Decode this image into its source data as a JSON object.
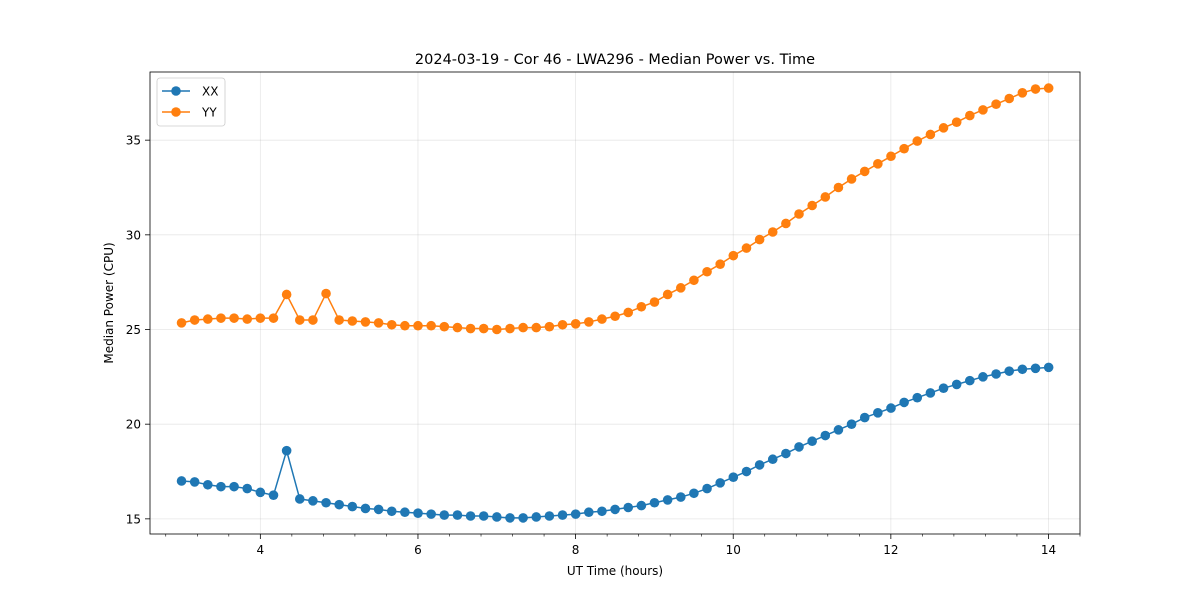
{
  "chart_data": {
    "type": "line",
    "title": "2024-03-19 - Cor 46 - LWA296 - Median Power vs. Time",
    "xlabel": "UT Time (hours)",
    "ylabel": "Median Power (CPU)",
    "xlim": [
      2.6,
      14.4
    ],
    "ylim": [
      14.2,
      38.6
    ],
    "xticks": [
      4,
      6,
      8,
      10,
      12,
      14
    ],
    "xtick_labels": [
      "4",
      "6",
      "8",
      "10",
      "12",
      "14"
    ],
    "x_minor_step": 0.4,
    "yticks": [
      15,
      20,
      25,
      30,
      35
    ],
    "ytick_labels": [
      "15",
      "20",
      "25",
      "30",
      "35"
    ],
    "grid": true,
    "legend_position": "top-left",
    "x_start": 3.0,
    "x_step": 0.1667,
    "series": [
      {
        "name": "XX",
        "color": "#1f77b4",
        "values": [
          17.0,
          16.95,
          16.8,
          16.7,
          16.7,
          16.6,
          16.4,
          16.25,
          18.6,
          16.05,
          15.95,
          15.85,
          15.75,
          15.65,
          15.55,
          15.5,
          15.4,
          15.35,
          15.3,
          15.25,
          15.2,
          15.2,
          15.15,
          15.15,
          15.1,
          15.05,
          15.05,
          15.1,
          15.15,
          15.2,
          15.25,
          15.35,
          15.4,
          15.5,
          15.6,
          15.7,
          15.85,
          16.0,
          16.15,
          16.35,
          16.6,
          16.9,
          17.2,
          17.5,
          17.85,
          18.15,
          18.45,
          18.8,
          19.1,
          19.4,
          19.7,
          20.0,
          20.35,
          20.6,
          20.85,
          21.15,
          21.4,
          21.65,
          21.9,
          22.1,
          22.3,
          22.5,
          22.65,
          22.8,
          22.9,
          22.95,
          23.0
        ]
      },
      {
        "name": "YY",
        "color": "#ff7f0e",
        "values": [
          25.35,
          25.5,
          25.55,
          25.6,
          25.6,
          25.55,
          25.6,
          25.6,
          26.85,
          25.5,
          25.5,
          26.9,
          25.5,
          25.45,
          25.4,
          25.35,
          25.25,
          25.2,
          25.2,
          25.2,
          25.15,
          25.1,
          25.05,
          25.05,
          25.0,
          25.05,
          25.1,
          25.1,
          25.15,
          25.25,
          25.3,
          25.4,
          25.55,
          25.7,
          25.9,
          26.2,
          26.45,
          26.85,
          27.2,
          27.6,
          28.05,
          28.45,
          28.9,
          29.3,
          29.75,
          30.15,
          30.6,
          31.1,
          31.55,
          32.0,
          32.5,
          32.95,
          33.35,
          33.75,
          34.15,
          34.55,
          34.95,
          35.3,
          35.65,
          35.95,
          36.3,
          36.6,
          36.9,
          37.2,
          37.5,
          37.7,
          37.75
        ]
      }
    ]
  }
}
